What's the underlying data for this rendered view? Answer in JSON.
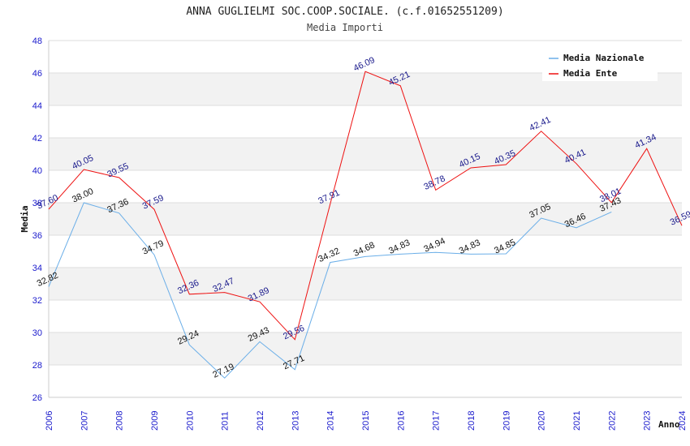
{
  "chart_data": {
    "type": "line",
    "title": "ANNA GUGLIELMI SOC.COOP.SOCIALE. (c.f.01652551209)",
    "subtitle": "Media Importi",
    "xlabel": "Anno",
    "ylabel": "Media",
    "ylim": [
      26,
      48
    ],
    "yticks": [
      "26",
      "28",
      "30",
      "32",
      "34",
      "36",
      "38",
      "40",
      "42",
      "44",
      "46",
      "48"
    ],
    "categories": [
      "2006",
      "2007",
      "2008",
      "2009",
      "2010",
      "2011",
      "2012",
      "2013",
      "2014",
      "2015",
      "2016",
      "2017",
      "2018",
      "2019",
      "2020",
      "2021",
      "2022",
      "2023",
      "2024"
    ],
    "grid": "horizontal bands",
    "legend_position": "top-right",
    "series": [
      {
        "name": "Media Nazionale",
        "color": "#6aaee8",
        "values": [
          32.82,
          38.0,
          37.36,
          34.79,
          29.24,
          27.19,
          29.43,
          27.71,
          34.32,
          34.68,
          34.83,
          34.94,
          34.83,
          34.85,
          37.05,
          36.46,
          37.43,
          null,
          null
        ],
        "labels": [
          "32.82",
          "38.00",
          "37.36",
          "34.79",
          "29.24",
          "27.19",
          "29.43",
          "27.71",
          "34.32",
          "34.68",
          "34.83",
          "34.94",
          "34.83",
          "34.85",
          "37.05",
          "36.46",
          "37.43",
          null,
          null
        ]
      },
      {
        "name": "Media Ente",
        "color": "#ee1111",
        "values": [
          37.6,
          40.05,
          39.55,
          37.59,
          32.36,
          32.47,
          31.89,
          29.56,
          37.91,
          46.09,
          45.21,
          38.78,
          40.15,
          40.35,
          42.41,
          40.41,
          38.01,
          41.34,
          36.59
        ],
        "labels": [
          "37.60",
          "40.05",
          "39.55",
          "37.59",
          "32.36",
          "32.47",
          "31.89",
          "29.56",
          "37.91",
          "46.09",
          "45.21",
          "38.78",
          "40.15",
          "40.35",
          "42.41",
          "40.41",
          "38.01",
          "41.34",
          "36.59"
        ]
      }
    ]
  }
}
